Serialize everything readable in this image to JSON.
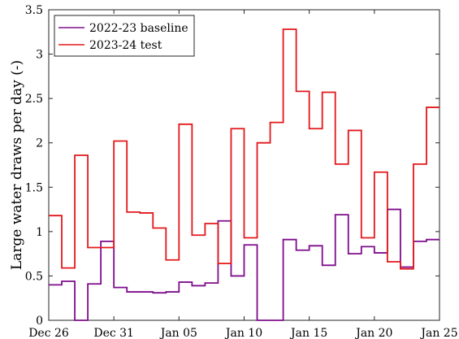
{
  "chart_data": {
    "type": "line",
    "step": true,
    "ylabel": "Large water draws per day (-)",
    "xlabel": "",
    "ylim": [
      0,
      3.5
    ],
    "x_range": [
      "Dec 26",
      "Jan 25"
    ],
    "yticks": [
      "0",
      "0.5",
      "1",
      "1.5",
      "2",
      "2.5",
      "3",
      "3.5"
    ],
    "xticks": [
      "Dec 26",
      "Dec 31",
      "Jan 05",
      "Jan 10",
      "Jan 15",
      "Jan 20",
      "Jan 25"
    ],
    "grid": false,
    "legend_position": "top-left",
    "series": [
      {
        "name": "2022-23 baseline",
        "color": "#7E0E8C",
        "values": [
          0.4,
          0.44,
          0.0,
          0.41,
          0.89,
          0.37,
          0.32,
          0.32,
          0.31,
          0.32,
          0.43,
          0.39,
          0.42,
          1.12,
          0.5,
          0.85,
          0.0,
          0.0,
          0.91,
          0.79,
          0.84,
          0.62,
          1.19,
          0.75,
          0.83,
          0.76,
          1.25,
          0.6,
          0.89,
          0.91
        ]
      },
      {
        "name": "2023-24 test",
        "color": "#E3181B",
        "values": [
          1.18,
          0.59,
          1.86,
          0.82,
          0.82,
          2.02,
          1.22,
          1.21,
          1.04,
          0.68,
          2.21,
          0.96,
          1.09,
          0.64,
          2.16,
          0.93,
          2.0,
          2.23,
          3.28,
          2.58,
          2.16,
          2.57,
          1.76,
          2.14,
          0.93,
          1.67,
          0.66,
          0.58,
          1.76,
          2.4
        ]
      }
    ]
  }
}
